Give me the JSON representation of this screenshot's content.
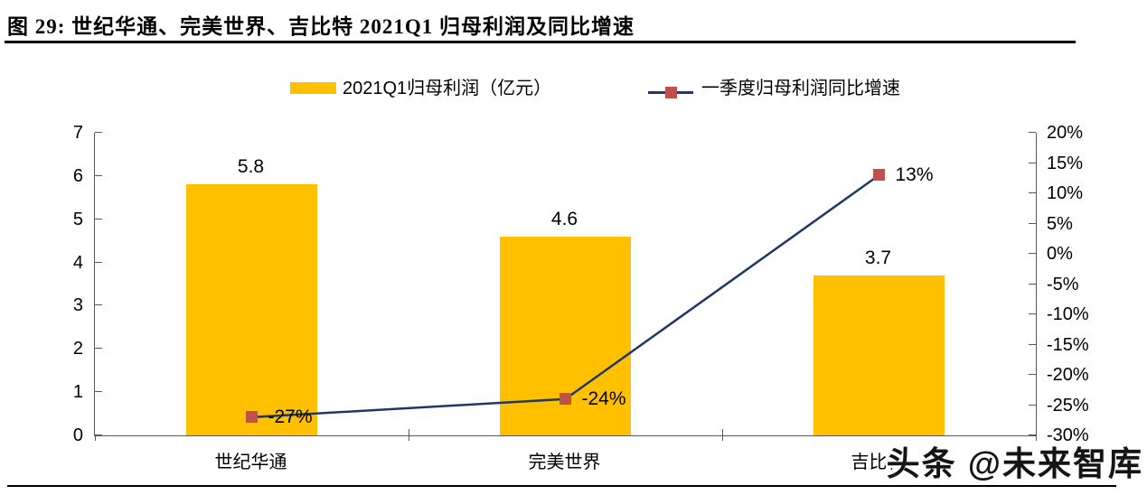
{
  "header": {
    "title": "图 29:  世纪华通、完美世界、吉比特 2021Q1 归母利润及同比增速"
  },
  "legend": {
    "items": [
      {
        "label": "2021Q1归母利润（亿元）"
      },
      {
        "label": "一季度归母利润同比增速"
      }
    ]
  },
  "colors": {
    "bar": "#FFC000",
    "line": "#1F3864",
    "marker": "#C0504D",
    "axis": "#595959",
    "text": "#000000"
  },
  "chart_data": {
    "type": "combo",
    "title": "世纪华通、完美世界、吉比特 2021Q1 归母利润及同比增速",
    "categories": [
      "世纪华通",
      "完美世界",
      "吉比特"
    ],
    "series": [
      {
        "name": "2021Q1归母利润（亿元）",
        "type": "bar",
        "axis": "left",
        "values": [
          5.8,
          4.6,
          3.7
        ],
        "labels": [
          "5.8",
          "4.6",
          "3.7"
        ],
        "color": "#FFC000"
      },
      {
        "name": "一季度归母利润同比增速",
        "type": "line",
        "axis": "right",
        "values": [
          -27,
          -24,
          13
        ],
        "labels": [
          "-27%",
          "-24%",
          "13%"
        ],
        "line_color": "#1F3864",
        "marker_color": "#C0504D"
      }
    ],
    "left_axis": {
      "min": 0,
      "max": 7,
      "tick_values": [
        0,
        1,
        2,
        3,
        4,
        5,
        6,
        7
      ],
      "tick_labels": [
        "0",
        "1",
        "2",
        "3",
        "4",
        "5",
        "6",
        "7"
      ]
    },
    "right_axis": {
      "min": -30,
      "max": 20,
      "tick_values": [
        -30,
        -25,
        -20,
        -15,
        -10,
        -5,
        0,
        5,
        10,
        15,
        20
      ],
      "tick_labels": [
        "-30%",
        "-25%",
        "-20%",
        "-15%",
        "-10%",
        "-5%",
        "0%",
        "5%",
        "10%",
        "15%",
        "20%"
      ]
    },
    "legend_position": "top",
    "grid": false
  },
  "watermark": "头条 @未来智库"
}
